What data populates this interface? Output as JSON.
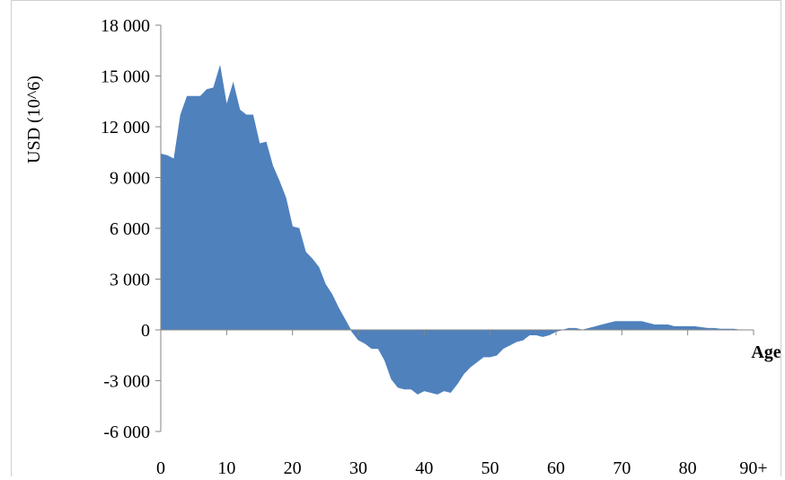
{
  "chart_data": {
    "type": "area",
    "xlabel": "Age",
    "ylabel": "USD (10^6)",
    "xlim": [
      0,
      90
    ],
    "ylim": [
      -6000,
      18000
    ],
    "x_ticks": [
      0,
      10,
      20,
      30,
      40,
      50,
      60,
      70,
      80,
      90
    ],
    "x_tick_labels": [
      "0",
      "10",
      "20",
      "30",
      "40",
      "50",
      "60",
      "70",
      "80",
      "90+"
    ],
    "y_ticks": [
      -6000,
      -3000,
      0,
      3000,
      6000,
      9000,
      12000,
      15000,
      18000
    ],
    "y_tick_labels": [
      "-6 000",
      "-3 000",
      "0",
      "3 000",
      "6 000",
      "9 000",
      "12 000",
      "15 000",
      "18 000"
    ],
    "color": "#4f81bd",
    "grid": false,
    "series": [
      {
        "x": [
          0,
          1,
          2,
          3,
          4,
          5,
          6,
          7,
          8,
          9,
          10,
          11,
          12,
          13,
          14,
          15,
          16,
          17,
          18,
          19,
          20,
          21,
          22,
          23,
          24,
          25,
          26,
          27,
          28,
          29,
          30,
          31,
          32,
          33,
          34,
          35,
          36,
          37,
          38,
          39,
          40,
          41,
          42,
          43,
          44,
          45,
          46,
          47,
          48,
          49,
          50,
          51,
          52,
          53,
          54,
          55,
          56,
          57,
          58,
          59,
          60,
          61,
          62,
          63,
          64,
          65,
          66,
          67,
          68,
          69,
          70,
          71,
          72,
          73,
          74,
          75,
          76,
          77,
          78,
          79,
          80,
          81,
          82,
          83,
          84,
          85,
          86,
          87,
          88,
          89,
          90
        ],
        "values": [
          10400,
          10300,
          10100,
          12700,
          13800,
          13800,
          13800,
          14200,
          14300,
          15600,
          13300,
          14600,
          13000,
          12700,
          12700,
          11000,
          11100,
          9700,
          8800,
          7800,
          6100,
          6000,
          4600,
          4200,
          3700,
          2700,
          2100,
          1300,
          600,
          -100,
          -600,
          -800,
          -1100,
          -1100,
          -1800,
          -2900,
          -3400,
          -3500,
          -3500,
          -3800,
          -3600,
          -3700,
          -3800,
          -3600,
          -3700,
          -3200,
          -2600,
          -2200,
          -1900,
          -1600,
          -1600,
          -1500,
          -1100,
          -900,
          -700,
          -600,
          -300,
          -300,
          -400,
          -300,
          -100,
          0,
          100,
          100,
          0,
          100,
          200,
          300,
          400,
          500,
          500,
          500,
          500,
          500,
          400,
          300,
          300,
          300,
          200,
          200,
          200,
          200,
          150,
          100,
          100,
          50,
          50,
          50,
          0,
          0,
          0
        ]
      }
    ]
  }
}
